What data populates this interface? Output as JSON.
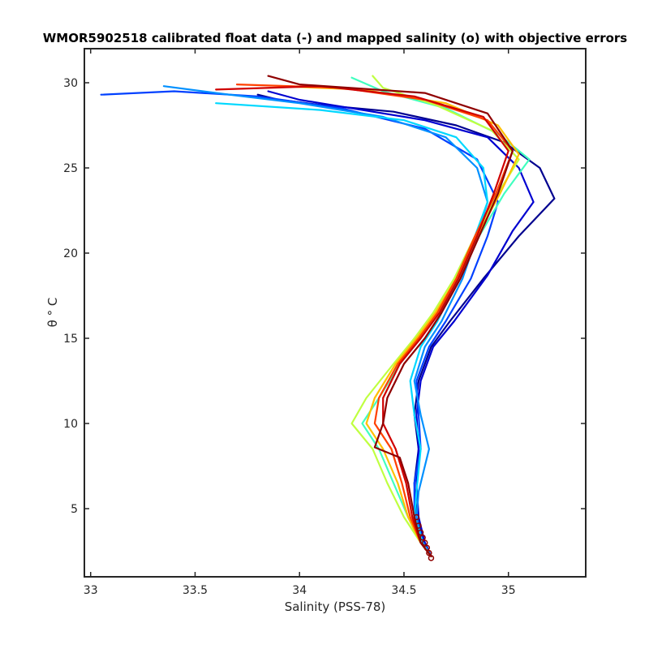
{
  "chart_data": {
    "type": "line",
    "title": "WMOR5902518 calibrated float data (-) and mapped salinity (o) with objective errors",
    "xlabel": "Salinity (PSS-78)",
    "ylabel": "θ ° C",
    "xlim": [
      32.97,
      35.37
    ],
    "ylim": [
      1.0,
      32.0
    ],
    "xticks": [
      "33",
      "33.5",
      "34",
      "34.5",
      "35"
    ],
    "yticks": [
      "5",
      "10",
      "15",
      "20",
      "25",
      "30"
    ],
    "xtick_values": [
      33,
      33.5,
      34,
      34.5,
      35
    ],
    "ytick_values": [
      5,
      10,
      15,
      20,
      25,
      30
    ],
    "grid": false,
    "legend": "none",
    "colormap": "jet",
    "series": [
      {
        "color": "#00008f",
        "points": [
          [
            34.63,
            2.2
          ],
          [
            34.6,
            3.0
          ],
          [
            34.56,
            4.5
          ],
          [
            34.55,
            6.5
          ],
          [
            34.57,
            8.5
          ],
          [
            34.55,
            10.5
          ],
          [
            34.57,
            12.5
          ],
          [
            34.63,
            14.5
          ],
          [
            34.72,
            16.0
          ],
          [
            34.88,
            18.5
          ],
          [
            35.05,
            21.0
          ],
          [
            35.22,
            23.2
          ],
          [
            35.15,
            25.0
          ],
          [
            34.98,
            26.5
          ],
          [
            34.75,
            27.5
          ],
          [
            34.45,
            28.3
          ],
          [
            34.1,
            28.7
          ],
          [
            33.9,
            29.0
          ],
          [
            33.8,
            29.3
          ]
        ]
      },
      {
        "color": "#0000d0",
        "points": [
          [
            34.63,
            2.2
          ],
          [
            34.6,
            3.0
          ],
          [
            34.57,
            4.5
          ],
          [
            34.56,
            6.5
          ],
          [
            34.57,
            8.5
          ],
          [
            34.56,
            10.5
          ],
          [
            34.58,
            12.5
          ],
          [
            34.64,
            14.5
          ],
          [
            34.74,
            16.0
          ],
          [
            34.9,
            18.7
          ],
          [
            35.02,
            21.3
          ],
          [
            35.12,
            23.0
          ],
          [
            35.05,
            25.0
          ],
          [
            34.9,
            26.8
          ],
          [
            34.6,
            27.8
          ],
          [
            34.3,
            28.4
          ],
          [
            34.0,
            29.0
          ],
          [
            33.85,
            29.5
          ]
        ]
      },
      {
        "color": "#0040ff",
        "points": [
          [
            34.63,
            2.2
          ],
          [
            34.59,
            3.0
          ],
          [
            34.55,
            4.5
          ],
          [
            34.55,
            6.5
          ],
          [
            34.58,
            8.5
          ],
          [
            34.57,
            10.5
          ],
          [
            34.56,
            12.5
          ],
          [
            34.62,
            14.5
          ],
          [
            34.7,
            16.0
          ],
          [
            34.82,
            18.5
          ],
          [
            34.9,
            21.0
          ],
          [
            34.95,
            23.0
          ],
          [
            34.85,
            25.5
          ],
          [
            34.6,
            27.3
          ],
          [
            34.2,
            28.5
          ],
          [
            33.8,
            29.2
          ],
          [
            33.4,
            29.5
          ],
          [
            33.05,
            29.3
          ]
        ]
      },
      {
        "color": "#0090ff",
        "points": [
          [
            34.63,
            2.2
          ],
          [
            34.59,
            3.0
          ],
          [
            34.56,
            4.5
          ],
          [
            34.57,
            6.0
          ],
          [
            34.62,
            8.5
          ],
          [
            34.58,
            10.5
          ],
          [
            34.55,
            12.5
          ],
          [
            34.6,
            14.5
          ],
          [
            34.68,
            16.0
          ],
          [
            34.78,
            18.5
          ],
          [
            34.85,
            21.0
          ],
          [
            34.9,
            23.0
          ],
          [
            34.85,
            25.0
          ],
          [
            34.7,
            26.8
          ],
          [
            34.4,
            28.0
          ],
          [
            34.0,
            28.8
          ],
          [
            33.6,
            29.4
          ],
          [
            33.35,
            29.8
          ]
        ]
      },
      {
        "color": "#00d8ff",
        "points": [
          [
            34.63,
            2.2
          ],
          [
            34.59,
            3.0
          ],
          [
            34.55,
            4.5
          ],
          [
            34.56,
            6.0
          ],
          [
            34.58,
            8.5
          ],
          [
            34.55,
            10.5
          ],
          [
            34.53,
            12.5
          ],
          [
            34.58,
            14.5
          ],
          [
            34.66,
            16.0
          ],
          [
            34.76,
            18.5
          ],
          [
            34.84,
            21.0
          ],
          [
            34.9,
            23.0
          ],
          [
            34.88,
            25.0
          ],
          [
            34.75,
            26.8
          ],
          [
            34.5,
            27.8
          ],
          [
            34.1,
            28.4
          ],
          [
            33.6,
            28.8
          ]
        ]
      },
      {
        "color": "#40ffbf",
        "points": [
          [
            34.63,
            2.2
          ],
          [
            34.58,
            3.0
          ],
          [
            34.52,
            4.5
          ],
          [
            34.45,
            6.5
          ],
          [
            34.38,
            8.5
          ],
          [
            34.3,
            10.0
          ],
          [
            34.38,
            11.5
          ],
          [
            34.48,
            13.5
          ],
          [
            34.58,
            15.0
          ],
          [
            34.66,
            16.5
          ],
          [
            34.76,
            18.5
          ],
          [
            34.86,
            21.0
          ],
          [
            34.98,
            23.5
          ],
          [
            35.1,
            25.5
          ],
          [
            34.95,
            27.0
          ],
          [
            34.7,
            28.5
          ],
          [
            34.4,
            29.5
          ],
          [
            34.25,
            30.3
          ]
        ]
      },
      {
        "color": "#bfff40",
        "points": [
          [
            34.63,
            2.2
          ],
          [
            34.58,
            3.0
          ],
          [
            34.5,
            4.5
          ],
          [
            34.42,
            6.5
          ],
          [
            34.35,
            8.5
          ],
          [
            34.25,
            10.0
          ],
          [
            34.32,
            11.5
          ],
          [
            34.45,
            13.5
          ],
          [
            34.55,
            15.0
          ],
          [
            34.64,
            16.5
          ],
          [
            34.74,
            18.5
          ],
          [
            34.84,
            21.0
          ],
          [
            34.95,
            23.5
          ],
          [
            35.05,
            25.5
          ],
          [
            34.92,
            27.2
          ],
          [
            34.65,
            28.7
          ],
          [
            34.4,
            29.7
          ],
          [
            34.35,
            30.4
          ]
        ]
      },
      {
        "color": "#ffbf00",
        "points": [
          [
            34.63,
            2.2
          ],
          [
            34.58,
            3.0
          ],
          [
            34.52,
            4.5
          ],
          [
            34.47,
            6.5
          ],
          [
            34.4,
            8.5
          ],
          [
            34.32,
            10.0
          ],
          [
            34.36,
            11.5
          ],
          [
            34.46,
            13.5
          ],
          [
            34.56,
            15.0
          ],
          [
            34.65,
            16.5
          ],
          [
            34.75,
            18.5
          ],
          [
            34.85,
            21.0
          ],
          [
            34.96,
            23.5
          ],
          [
            35.05,
            25.8
          ],
          [
            34.95,
            27.5
          ],
          [
            34.7,
            28.8
          ],
          [
            34.3,
            29.6
          ],
          [
            33.9,
            29.8
          ]
        ]
      },
      {
        "color": "#ff4000",
        "points": [
          [
            34.63,
            2.2
          ],
          [
            34.58,
            3.0
          ],
          [
            34.53,
            4.5
          ],
          [
            34.49,
            6.5
          ],
          [
            34.44,
            8.5
          ],
          [
            34.36,
            10.0
          ],
          [
            34.38,
            11.5
          ],
          [
            34.47,
            13.5
          ],
          [
            34.57,
            15.0
          ],
          [
            34.66,
            16.5
          ],
          [
            34.75,
            18.5
          ],
          [
            34.84,
            21.0
          ],
          [
            34.94,
            23.5
          ],
          [
            35.02,
            26.0
          ],
          [
            34.9,
            27.8
          ],
          [
            34.6,
            29.0
          ],
          [
            34.2,
            29.7
          ],
          [
            33.7,
            29.9
          ]
        ]
      },
      {
        "color": "#cf0000",
        "points": [
          [
            34.63,
            2.2
          ],
          [
            34.58,
            3.0
          ],
          [
            34.54,
            4.5
          ],
          [
            34.51,
            6.5
          ],
          [
            34.46,
            8.5
          ],
          [
            34.4,
            10.0
          ],
          [
            34.4,
            11.5
          ],
          [
            34.48,
            13.5
          ],
          [
            34.58,
            15.0
          ],
          [
            34.67,
            16.5
          ],
          [
            34.76,
            18.5
          ],
          [
            34.85,
            21.0
          ],
          [
            34.93,
            23.5
          ],
          [
            35.0,
            26.0
          ],
          [
            34.88,
            28.0
          ],
          [
            34.55,
            29.2
          ],
          [
            34.1,
            29.8
          ],
          [
            33.6,
            29.6
          ]
        ]
      },
      {
        "color": "#8f0000",
        "points": [
          [
            34.63,
            2.2
          ],
          [
            34.58,
            3.0
          ],
          [
            34.55,
            4.5
          ],
          [
            34.52,
            6.5
          ],
          [
            34.48,
            8.0
          ],
          [
            34.36,
            8.6
          ],
          [
            34.4,
            10.0
          ],
          [
            34.42,
            11.5
          ],
          [
            34.5,
            13.5
          ],
          [
            34.6,
            15.0
          ],
          [
            34.68,
            16.5
          ],
          [
            34.77,
            18.5
          ],
          [
            34.86,
            21.0
          ],
          [
            34.95,
            23.5
          ],
          [
            35.02,
            26.0
          ],
          [
            34.9,
            28.2
          ],
          [
            34.6,
            29.4
          ],
          [
            34.0,
            29.9
          ],
          [
            33.85,
            30.4
          ]
        ]
      }
    ],
    "mapped_points_color": "#8f0000",
    "mapped_points": [
      [
        34.63,
        2.1
      ],
      [
        34.62,
        2.4
      ],
      [
        34.61,
        2.7
      ],
      [
        34.6,
        3.0
      ],
      [
        34.59,
        3.3
      ],
      [
        34.58,
        3.6
      ],
      [
        34.57,
        4.0
      ],
      [
        34.56,
        4.5
      ]
    ]
  }
}
